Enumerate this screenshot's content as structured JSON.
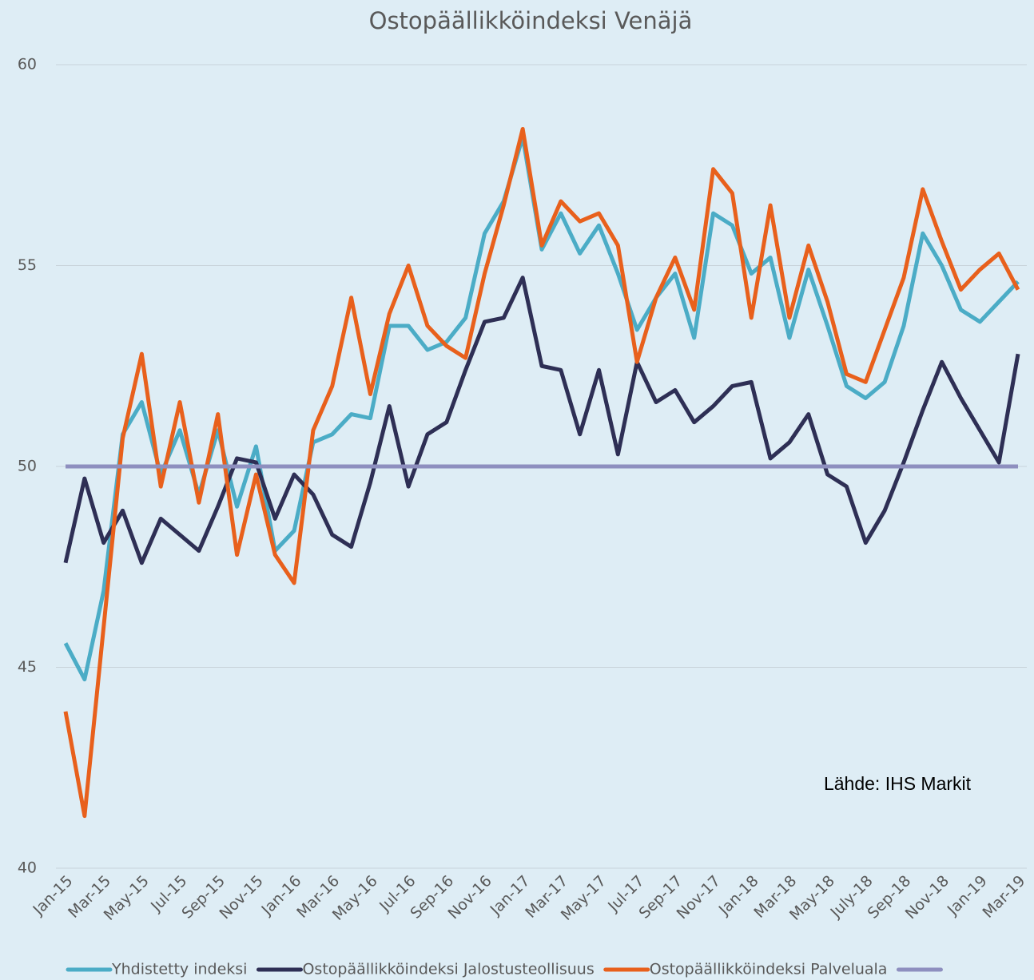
{
  "chart_data": {
    "type": "line",
    "title": "Ostopäällikköindeksi Venäjä",
    "annotation": "Lähde: IHS Markit",
    "categories": [
      "Jan-15",
      null,
      "Mar-15",
      null,
      "May-15",
      null,
      "Jul-15",
      null,
      "Sep-15",
      null,
      "Nov-15",
      null,
      "Jan-16",
      null,
      "Mar-16",
      null,
      "May-16",
      null,
      "Jul-16",
      null,
      "Sep-16",
      null,
      "Nov-16",
      null,
      "Jan-17",
      null,
      "Mar-17",
      null,
      "May-17",
      null,
      "Jul-17",
      null,
      "Sep-17",
      null,
      "Nov-17",
      null,
      "Jan-18",
      null,
      "Mar-18",
      null,
      "May-18",
      null,
      "July-18",
      null,
      "Sep-18",
      null,
      "Nov-18",
      null,
      "Jan-19",
      null,
      "Mar-19"
    ],
    "series": [
      {
        "name": "Yhdistetty indeksi",
        "color": "#4bacc6",
        "values": [
          45.6,
          44.7,
          46.9,
          50.8,
          51.6,
          49.8,
          50.9,
          49.3,
          50.9,
          49.0,
          50.5,
          47.9,
          48.4,
          50.6,
          50.8,
          51.3,
          51.2,
          53.5,
          53.5,
          52.9,
          53.1,
          53.7,
          55.8,
          56.6,
          58.2,
          55.4,
          56.3,
          55.3,
          56.0,
          54.8,
          53.4,
          54.2,
          54.8,
          53.2,
          56.3,
          56.0,
          54.8,
          55.2,
          53.2,
          54.9,
          53.5,
          52.0,
          51.7,
          52.1,
          53.5,
          55.8,
          55.0,
          53.9,
          53.6,
          54.1,
          54.6
        ]
      },
      {
        "name": "Ostopäällikköindeksi Jalostusteollisuus",
        "color": "#2e2f55",
        "values": [
          47.6,
          49.7,
          48.1,
          48.9,
          47.6,
          48.7,
          48.3,
          47.9,
          49.0,
          50.2,
          50.1,
          48.7,
          49.8,
          49.3,
          48.3,
          48.0,
          49.6,
          51.5,
          49.5,
          50.8,
          51.1,
          52.4,
          53.6,
          53.7,
          54.7,
          52.5,
          52.4,
          50.8,
          52.4,
          50.3,
          52.6,
          51.6,
          51.9,
          51.1,
          51.5,
          52.0,
          52.1,
          50.2,
          50.6,
          51.3,
          49.8,
          49.5,
          48.1,
          48.9,
          50.1,
          51.4,
          52.6,
          51.7,
          50.9,
          50.1,
          52.8
        ]
      },
      {
        "name": "Ostopäällikköindeksi Palveluala",
        "color": "#e8601c",
        "values": [
          43.9,
          41.3,
          46.0,
          50.7,
          52.8,
          49.5,
          51.6,
          49.1,
          51.3,
          47.8,
          49.8,
          47.8,
          47.1,
          50.9,
          52.0,
          54.2,
          51.8,
          53.8,
          55.0,
          53.5,
          53.0,
          52.7,
          54.8,
          56.5,
          58.4,
          55.5,
          56.6,
          56.1,
          56.3,
          55.5,
          52.6,
          54.2,
          55.2,
          53.9,
          57.4,
          56.8,
          53.7,
          56.5,
          53.7,
          55.5,
          54.1,
          52.3,
          52.1,
          53.4,
          54.7,
          56.9,
          55.6,
          54.4,
          54.9,
          55.3,
          54.4
        ]
      },
      {
        "color": "#8e8fbf",
        "values": [
          50,
          50,
          50,
          50,
          50,
          50,
          50,
          50,
          50,
          50,
          50,
          50,
          50,
          50,
          50,
          50,
          50,
          50,
          50,
          50,
          50,
          50,
          50,
          50,
          50,
          50,
          50,
          50,
          50,
          50,
          50,
          50,
          50,
          50,
          50,
          50,
          50,
          50,
          50,
          50,
          50,
          50,
          50,
          50,
          50,
          50,
          50,
          50,
          50,
          50,
          50
        ]
      }
    ],
    "ylim": [
      40,
      60
    ],
    "yticks": [
      40,
      45,
      50,
      55,
      60
    ],
    "grid": true,
    "legend": "bottom"
  }
}
